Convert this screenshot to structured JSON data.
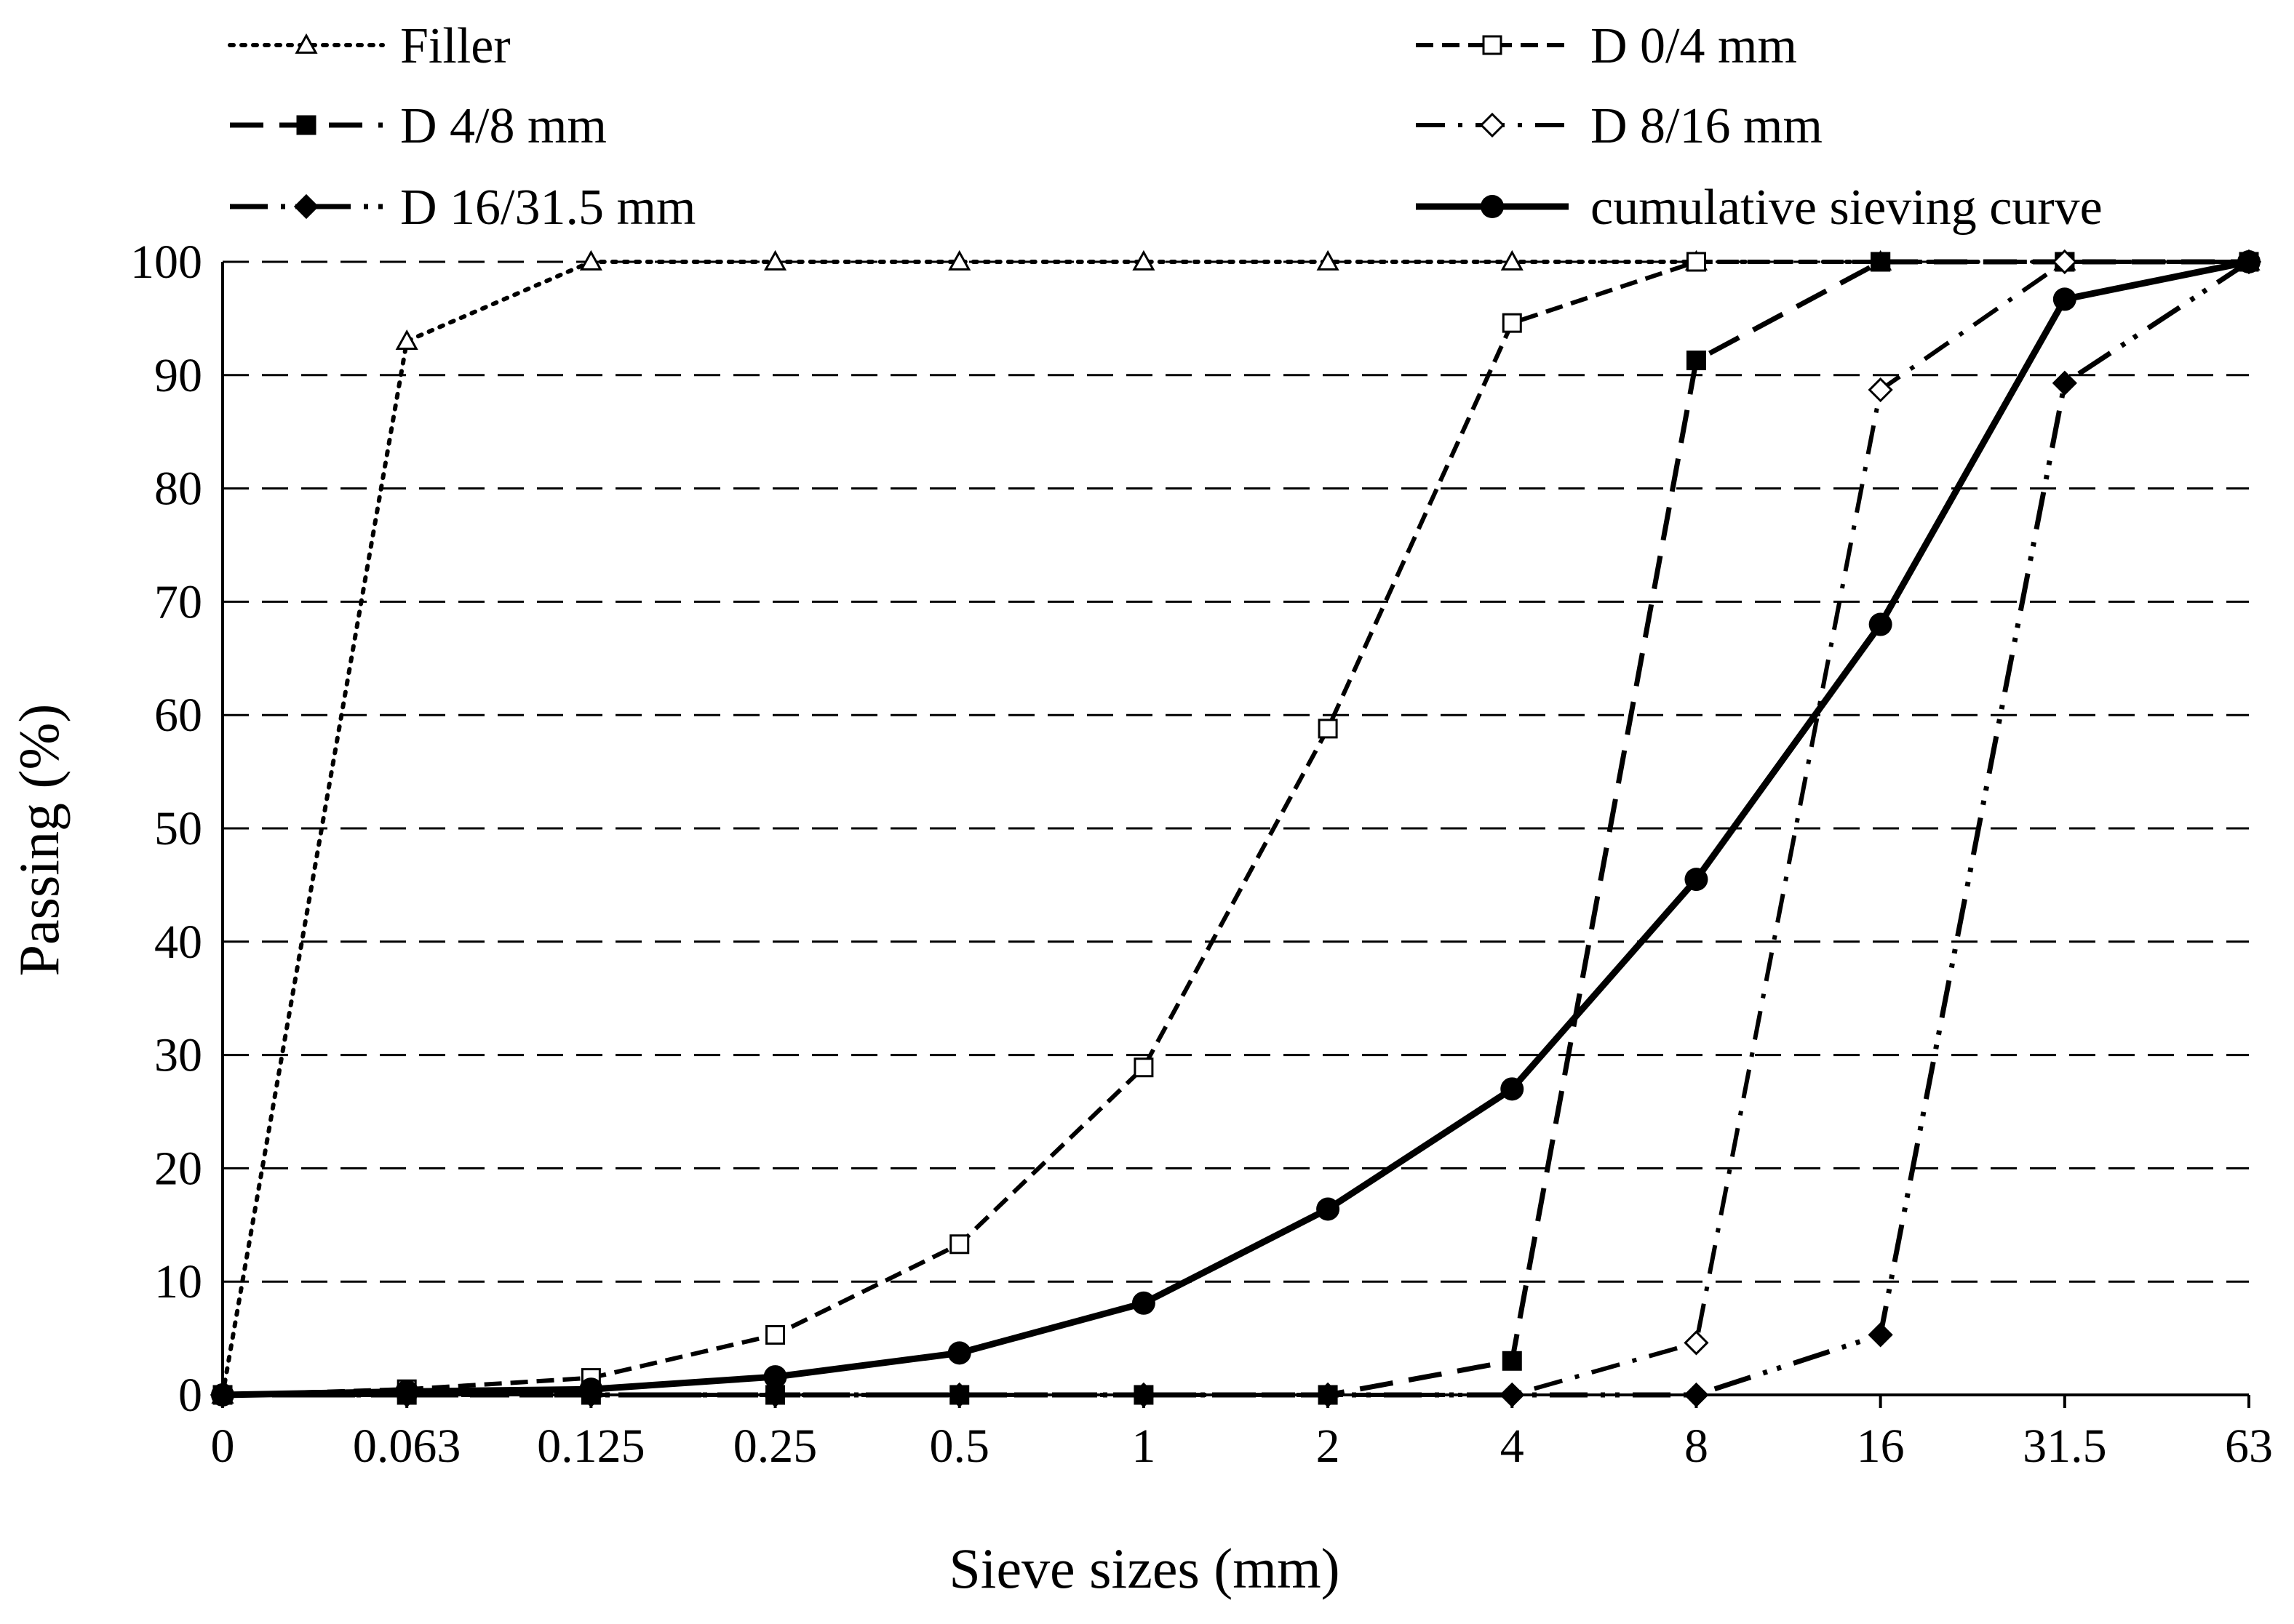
{
  "chart_data": {
    "type": "line",
    "title": "",
    "xlabel": "Sieve sizes (mm)",
    "ylabel": "Passing (%)",
    "categories": [
      "0",
      "0.063",
      "0.125",
      "0.25",
      "0.5",
      "1",
      "2",
      "4",
      "8",
      "16",
      "31.5",
      "63"
    ],
    "ylim": [
      0,
      100
    ],
    "yticks": [
      "0",
      "10",
      "20",
      "30",
      "40",
      "50",
      "60",
      "70",
      "80",
      "90",
      "100"
    ],
    "grid": "horizontal dashed",
    "legend_position": "top",
    "series": [
      {
        "name": "Filler",
        "line": "dotted",
        "marker": "triangle-open",
        "values": [
          0,
          93,
          100,
          100,
          100,
          100,
          100,
          100,
          100,
          100,
          100,
          100
        ]
      },
      {
        "name": "D 0/4 mm",
        "line": "dashed",
        "marker": "square-open",
        "values": [
          0,
          0.5,
          1.5,
          5.3,
          13.3,
          28.9,
          58.8,
          94.6,
          100,
          100,
          100,
          100
        ]
      },
      {
        "name": "D 4/8 mm",
        "line": "long-dash",
        "marker": "square-filled",
        "values": [
          0,
          0,
          0,
          0,
          0,
          0,
          0,
          3,
          91.3,
          100,
          100,
          100
        ]
      },
      {
        "name": "D 8/16 mm",
        "line": "dash-dot",
        "marker": "diamond-open",
        "values": [
          0,
          0,
          0,
          0,
          0,
          0,
          0,
          0,
          4.6,
          88.7,
          100,
          100
        ]
      },
      {
        "name": "D 16/31.5 mm",
        "line": "long-dash-dot-dot",
        "marker": "diamond-filled",
        "values": [
          0,
          0,
          0,
          0,
          0,
          0,
          0,
          0,
          0,
          5.3,
          89.3,
          100
        ]
      },
      {
        "name": "cumulative sieving curve",
        "line": "solid",
        "marker": "circle-filled",
        "values": [
          0,
          0.3,
          0.5,
          1.6,
          3.7,
          8.1,
          16.4,
          27.0,
          45.5,
          68.0,
          96.7,
          100
        ]
      }
    ]
  }
}
